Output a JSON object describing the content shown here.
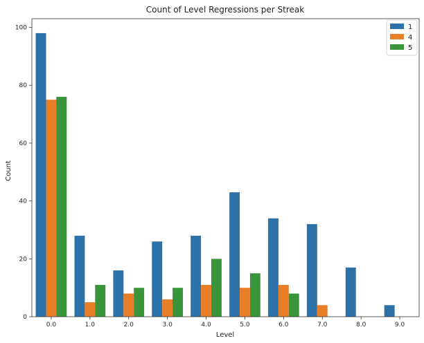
{
  "chart_data": {
    "type": "bar",
    "title": "Count of Level Regressions per Streak",
    "xlabel": "Level",
    "ylabel": "Count",
    "categories": [
      "0.0",
      "1.0",
      "2.0",
      "3.0",
      "4.0",
      "5.0",
      "6.0",
      "7.0",
      "8.0",
      "9.0"
    ],
    "ylim": [
      0,
      103
    ],
    "yticks": [
      0,
      20,
      40,
      60,
      80,
      100
    ],
    "grid": false,
    "legend": {
      "position": "top-right",
      "title": ""
    },
    "series": [
      {
        "name": "1",
        "color": "#2c72a8",
        "values": [
          98,
          28,
          16,
          26,
          28,
          43,
          34,
          32,
          17,
          4
        ]
      },
      {
        "name": "4",
        "color": "#e87e27",
        "values": [
          75,
          5,
          8,
          6,
          11,
          10,
          11,
          4,
          0,
          0
        ]
      },
      {
        "name": "5",
        "color": "#3a953a",
        "values": [
          76,
          11,
          10,
          10,
          20,
          15,
          8,
          0,
          0,
          0
        ]
      }
    ]
  }
}
